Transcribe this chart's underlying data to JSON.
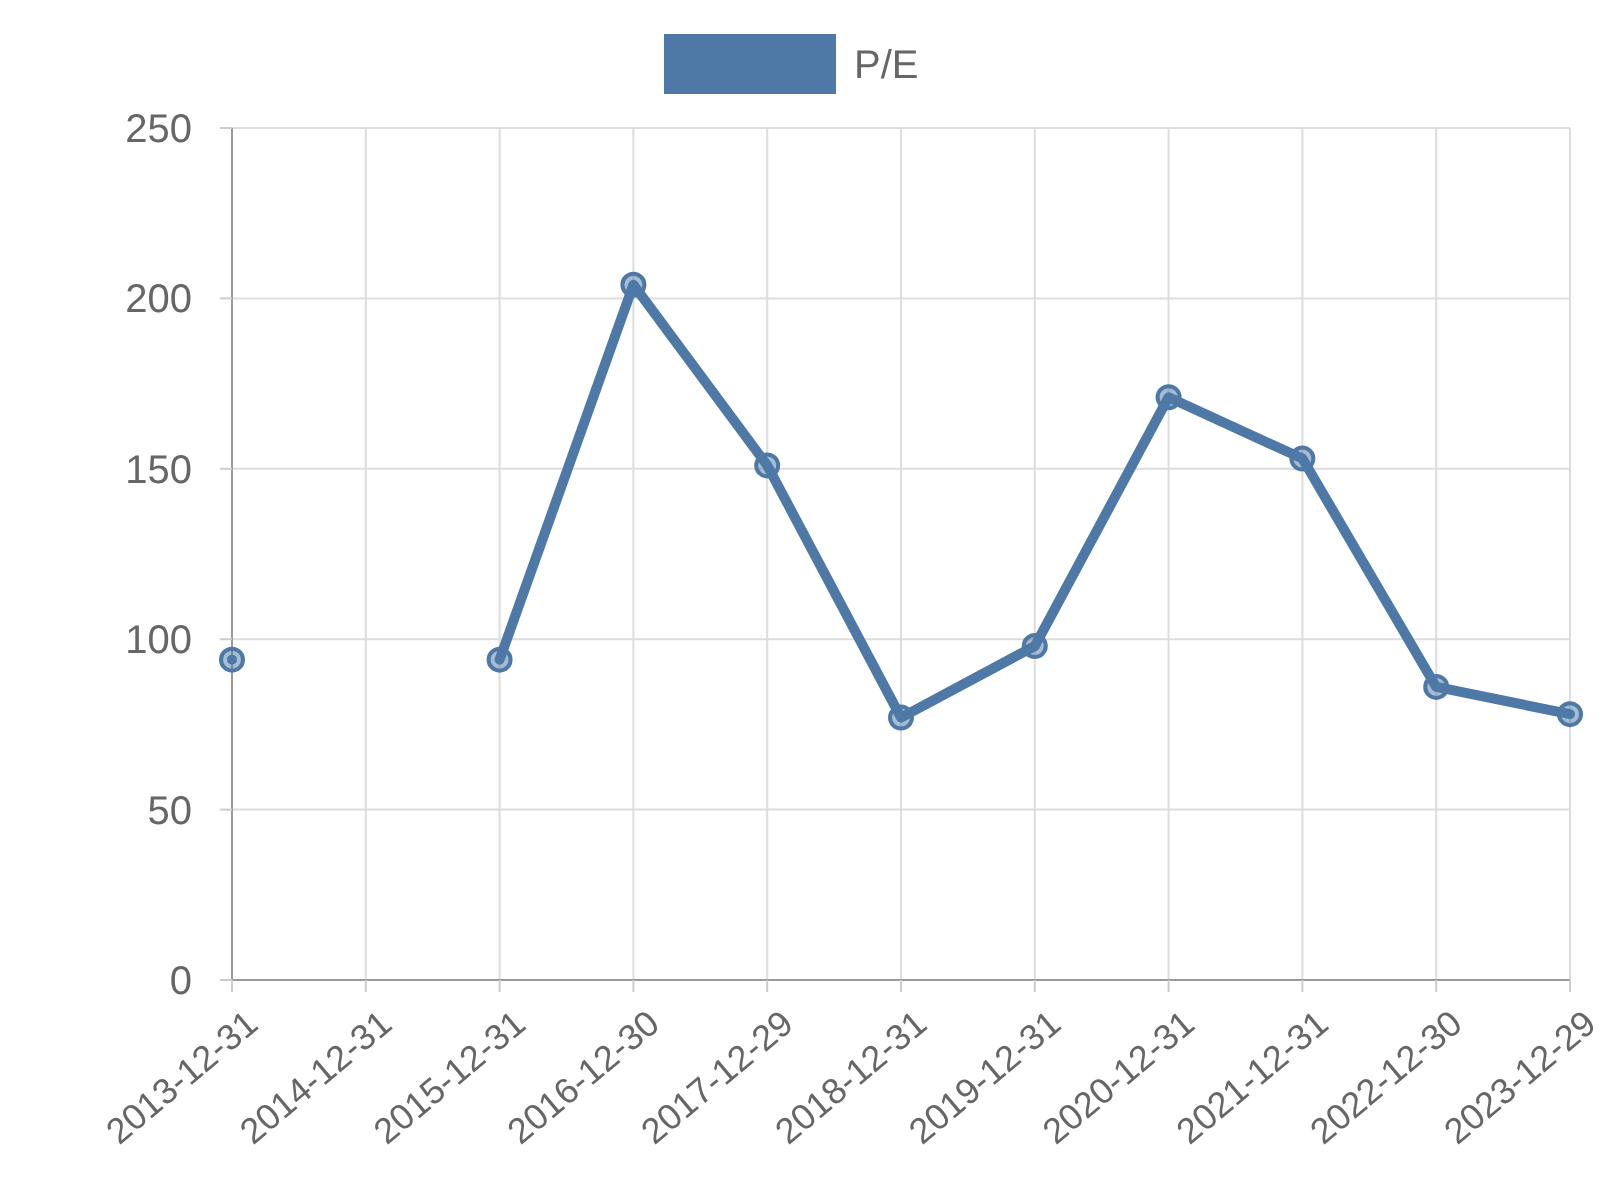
{
  "chart_data": {
    "type": "line",
    "categories": [
      "2013-12-31",
      "2014-12-31",
      "2015-12-31",
      "2016-12-30",
      "2017-12-29",
      "2018-12-31",
      "2019-12-31",
      "2020-12-31",
      "2021-12-31",
      "2022-12-30",
      "2023-12-29"
    ],
    "series": [
      {
        "name": "P/E",
        "color": "#4e79a7",
        "values": [
          94,
          null,
          94,
          204,
          151,
          77,
          98,
          171,
          153,
          86,
          78
        ]
      }
    ],
    "ylim": [
      0,
      250
    ],
    "yticks": [
      0,
      50,
      100,
      150,
      200,
      250
    ],
    "grid": true,
    "legend": "top",
    "marker": "circle",
    "line_style": "solid"
  }
}
